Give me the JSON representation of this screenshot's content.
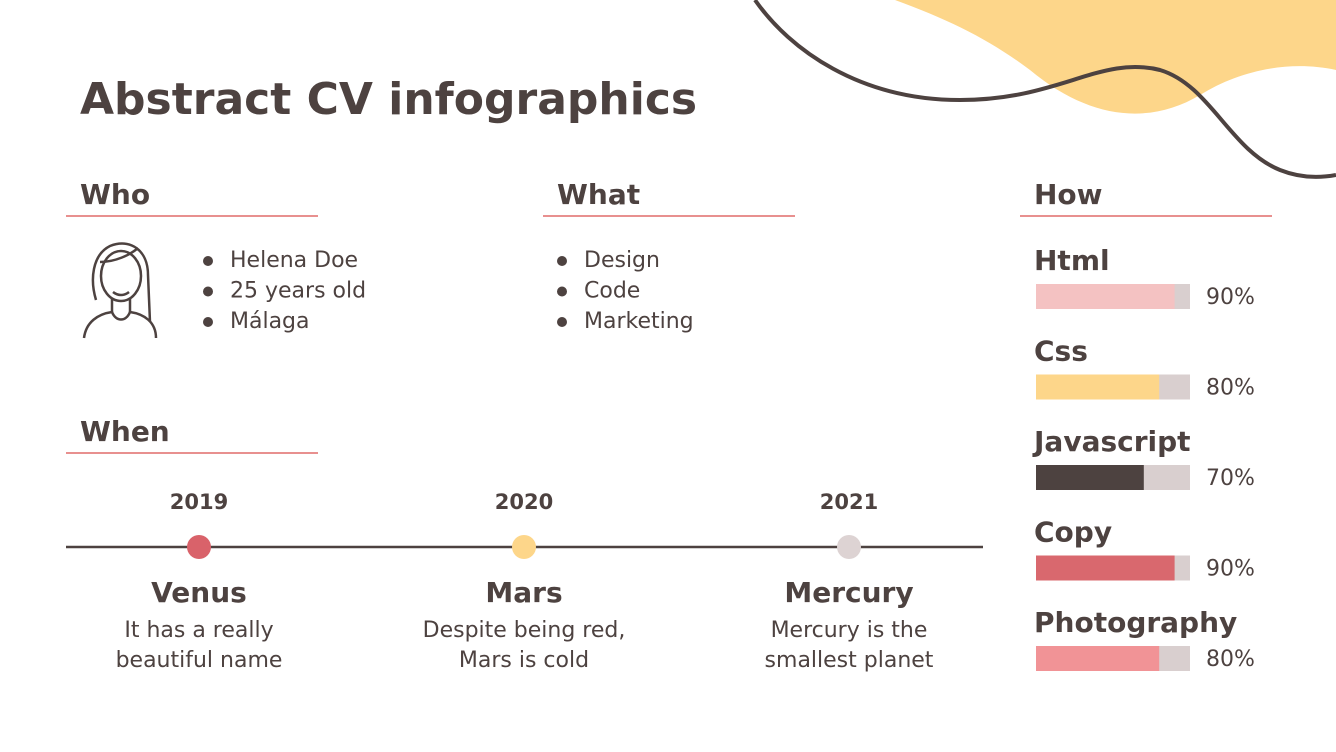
{
  "title": "Abstract CV infographics",
  "who": {
    "heading": "Who",
    "items": [
      "Helena Doe",
      "25 years old",
      "Málaga"
    ]
  },
  "what": {
    "heading": "What",
    "items": [
      "Design",
      "Code",
      "Marketing"
    ]
  },
  "how": {
    "heading": "How",
    "skills": [
      {
        "name": "Html",
        "value": 90,
        "label": "90%",
        "color": "#f4c2c2"
      },
      {
        "name": "Css",
        "value": 80,
        "label": "80%",
        "color": "#fdd68a"
      },
      {
        "name": "Javascript",
        "value": 70,
        "label": "70%",
        "color": "#4d4240"
      },
      {
        "name": "Copy",
        "value": 90,
        "label": "90%",
        "color": "#d9686e"
      },
      {
        "name": "Photography",
        "value": 80,
        "label": "80%",
        "color": "#f19396"
      }
    ]
  },
  "when": {
    "heading": "When",
    "events": [
      {
        "year": "2019",
        "name": "Venus",
        "lines": [
          "It has a really",
          "beautiful name"
        ],
        "color": "#d9626a"
      },
      {
        "year": "2020",
        "name": "Mars",
        "lines": [
          "Despite being red,",
          "Mars is cold"
        ],
        "color": "#fdd68a"
      },
      {
        "year": "2021",
        "name": "Mercury",
        "lines": [
          "Mercury is the",
          "smallest planet"
        ],
        "color": "#ddd3d3"
      }
    ]
  }
}
